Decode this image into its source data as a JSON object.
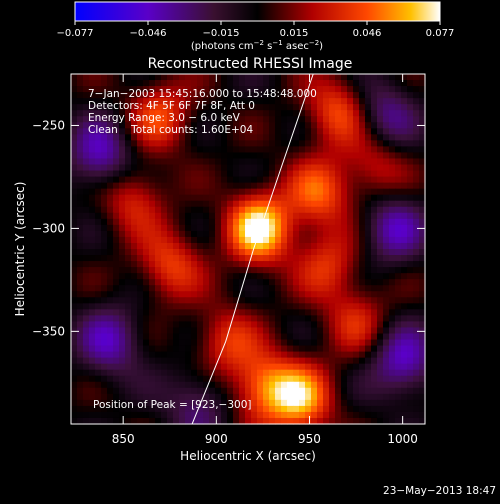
{
  "colorbar": {
    "tick_labels": [
      "−0.077",
      "−0.046",
      "−0.015",
      "0.015",
      "0.046",
      "0.077"
    ],
    "unit_prefix": "(photons cm",
    "unit_exp1": "−2",
    "unit_mid": " s",
    "unit_exp2": "−1",
    "unit_mid2": " asec",
    "unit_exp3": "−2",
    "unit_suffix": ")",
    "range": [
      -0.077,
      0.077
    ]
  },
  "plot": {
    "title": "Reconstructed RHESSI Image",
    "info_lines": [
      "7−Jan−2003 15:45:16.000 to 15:48:48.000",
      "Detectors: 4F 5F 6F 7F 8F, Att 0",
      "Energy Range: 3.0 − 6.0 keV",
      "Clean    Total counts: 1.60E+04"
    ],
    "peak_label": "Position of Peak = [923,−300]",
    "xlabel": "Heliocentric X (arcsec)",
    "ylabel": "Heliocentric Y (arcsec)",
    "x_ticks": [
      "850",
      "900",
      "950",
      "1000"
    ],
    "y_ticks": [
      "−250",
      "−300",
      "−350"
    ]
  },
  "footer": {
    "date": "23−May−2013 18:47"
  },
  "chart_data": {
    "type": "heatmap",
    "title": "Reconstructed RHESSI Image",
    "xlabel": "Heliocentric X (arcsec)",
    "ylabel": "Heliocentric Y (arcsec)",
    "xlim": [
      822,
      1012
    ],
    "ylim": [
      -395,
      -225
    ],
    "x_ticks": [
      850,
      900,
      950,
      1000
    ],
    "y_ticks": [
      -250,
      -300,
      -350
    ],
    "colormap": "blue-purple-black-red-orange-yellow-white",
    "value_range": [
      -0.077,
      0.077
    ],
    "peak_position": [
      923,
      -300
    ],
    "peak_value": 0.077,
    "sources": [
      {
        "x": 923,
        "y": -300,
        "value": 0.077
      },
      {
        "x": 955,
        "y": -283,
        "value": 0.045
      },
      {
        "x": 965,
        "y": -243,
        "value": 0.043
      },
      {
        "x": 870,
        "y": -245,
        "value": 0.04
      },
      {
        "x": 855,
        "y": -285,
        "value": 0.035
      },
      {
        "x": 875,
        "y": -318,
        "value": 0.04
      },
      {
        "x": 905,
        "y": -355,
        "value": 0.035
      },
      {
        "x": 925,
        "y": -377,
        "value": 0.05
      },
      {
        "x": 945,
        "y": -383,
        "value": 0.06
      },
      {
        "x": 960,
        "y": -318,
        "value": 0.035
      },
      {
        "x": 975,
        "y": -345,
        "value": 0.03
      },
      {
        "x": 985,
        "y": -270,
        "value": 0.03
      },
      {
        "x": 843,
        "y": -355,
        "value": -0.04
      },
      {
        "x": 838,
        "y": -265,
        "value": -0.045
      },
      {
        "x": 995,
        "y": -300,
        "value": -0.04
      },
      {
        "x": 1000,
        "y": -365,
        "value": -0.045
      },
      {
        "x": 890,
        "y": -385,
        "value": -0.03
      },
      {
        "x": 990,
        "y": -245,
        "value": -0.035
      }
    ],
    "limb_curve": [
      [
        887,
        -395
      ],
      [
        905,
        -355
      ],
      [
        920,
        -310
      ],
      [
        935,
        -270
      ],
      [
        952,
        -225
      ]
    ]
  }
}
